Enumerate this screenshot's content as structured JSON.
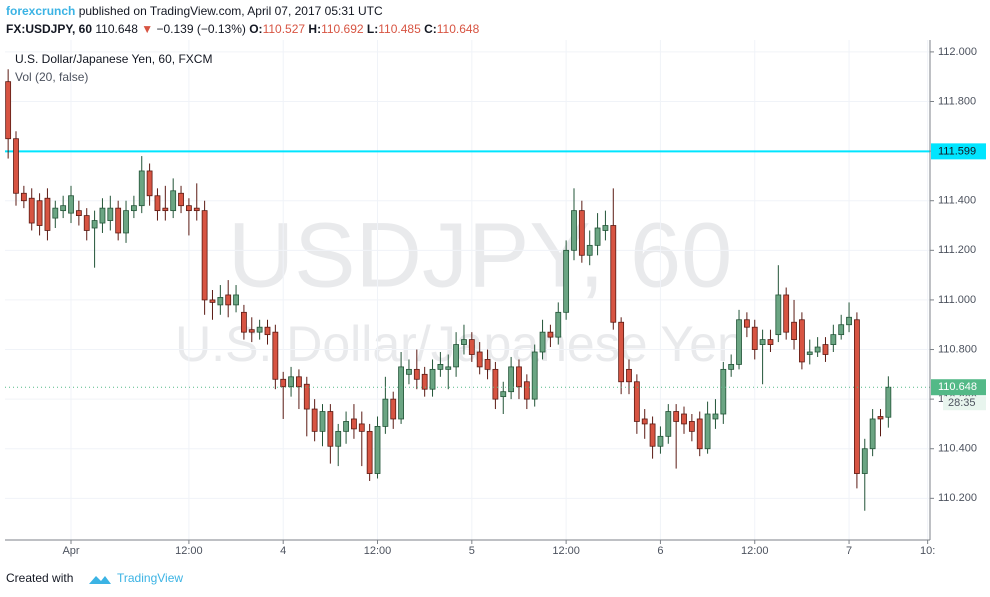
{
  "header": {
    "author": "forexcrunch",
    "published": "published on TradingView.com, April 07, 2017 05:31 UTC",
    "symbol": "FX:USDJPY, 60",
    "price": "110.648",
    "arrow": "▼",
    "change": "−0.139 (−0.13%)",
    "open_label": "O:",
    "open": "110.527",
    "high_label": "H:",
    "high": "110.692",
    "low_label": "L:",
    "low": "110.485",
    "close_label": "C:",
    "close": "110.648"
  },
  "chart_data": {
    "type": "candlestick",
    "title": "U.S. Dollar/Japanese Yen, 60, FXCM",
    "subtitle": "Vol (20, false)",
    "watermark": "USDJPY, 60",
    "watermark_subtitle": "U.S. Dollar/Japanese Yen",
    "up_color": "#6ba583",
    "down_color": "#d75442",
    "up_border": "#225437",
    "down_border": "#5b1a13",
    "grid": true,
    "x": [
      0,
      1,
      2,
      3,
      4,
      5,
      6,
      7,
      8,
      9,
      10,
      11,
      12,
      13,
      14,
      15,
      16,
      17,
      18,
      19,
      20,
      21,
      22,
      23,
      24,
      25,
      26,
      27,
      28,
      29,
      30,
      31,
      32,
      33,
      34,
      35,
      36,
      37,
      38,
      39,
      40,
      41,
      42,
      43,
      44,
      45,
      46,
      47,
      48,
      49,
      50,
      51,
      52,
      53,
      54,
      55,
      56,
      57,
      58,
      59,
      60,
      61,
      62,
      63,
      64,
      65,
      66,
      67,
      68,
      69,
      70,
      71,
      72,
      73,
      74,
      75,
      76,
      77,
      78,
      79,
      80,
      81,
      82,
      83,
      84,
      85,
      86,
      87,
      88,
      89,
      90,
      91,
      92,
      93,
      94,
      95,
      96,
      97,
      98,
      99,
      100,
      101,
      102,
      103,
      104,
      105,
      106,
      107,
      108,
      109,
      110,
      111,
      112
    ],
    "open": [
      111.88,
      111.65,
      111.43,
      111.41,
      111.4,
      111.41,
      111.33,
      111.36,
      111.35,
      111.36,
      111.34,
      111.29,
      111.31,
      111.32,
      111.37,
      111.27,
      111.36,
      111.38,
      111.52,
      111.42,
      111.37,
      111.36,
      111.43,
      111.38,
      111.37,
      111.36,
      111.0,
      110.98,
      111.02,
      110.98,
      110.95,
      110.88,
      110.87,
      110.89,
      110.87,
      110.68,
      110.65,
      110.69,
      110.66,
      110.56,
      110.47,
      110.55,
      110.41,
      110.47,
      110.52,
      110.5,
      110.47,
      110.3,
      110.49,
      110.6,
      110.52,
      110.7,
      110.72,
      110.7,
      110.64,
      110.72,
      110.72,
      110.73,
      110.82,
      110.84,
      110.79,
      110.76,
      110.72,
      110.61,
      110.63,
      110.73,
      110.67,
      110.6,
      110.79,
      110.87,
      110.85,
      110.95,
      111.2,
      111.36,
      111.18,
      111.22,
      111.28,
      111.3,
      110.91,
      110.72,
      110.67,
      110.52,
      110.5,
      110.41,
      110.45,
      110.55,
      110.54,
      110.51,
      110.52,
      110.4,
      110.52,
      110.54,
      110.72,
      110.74,
      110.92,
      110.89,
      110.82,
      110.84,
      110.86,
      111.02,
      110.91,
      110.92,
      110.78,
      110.79,
      110.82,
      110.82,
      110.86,
      110.9,
      110.92,
      110.3,
      110.4,
      110.53,
      110.527
    ],
    "high": [
      111.93,
      111.68,
      111.46,
      111.45,
      111.43,
      111.45,
      111.4,
      111.42,
      111.46,
      111.4,
      111.37,
      111.36,
      111.41,
      111.42,
      111.4,
      111.4,
      111.42,
      111.58,
      111.55,
      111.45,
      111.46,
      111.49,
      111.46,
      111.41,
      111.47,
      111.4,
      111.04,
      111.06,
      111.08,
      111.06,
      110.98,
      110.93,
      110.92,
      110.92,
      110.9,
      110.71,
      110.73,
      110.72,
      110.69,
      110.6,
      110.58,
      110.58,
      110.5,
      110.55,
      110.58,
      110.55,
      110.5,
      110.53,
      110.69,
      110.63,
      110.79,
      110.76,
      110.8,
      110.73,
      110.76,
      110.79,
      110.78,
      110.87,
      110.9,
      110.87,
      110.83,
      110.8,
      110.75,
      110.67,
      110.77,
      110.76,
      110.7,
      110.82,
      110.92,
      110.9,
      110.99,
      111.24,
      111.45,
      111.4,
      111.28,
      111.35,
      111.36,
      111.45,
      110.93,
      110.76,
      110.7,
      110.56,
      110.53,
      110.49,
      110.58,
      110.58,
      110.57,
      110.54,
      110.55,
      110.59,
      110.6,
      110.75,
      110.78,
      110.96,
      110.95,
      110.92,
      110.88,
      110.88,
      111.14,
      111.05,
      111.0,
      110.95,
      110.84,
      110.85,
      110.85,
      110.9,
      110.94,
      110.99,
      110.95,
      110.44,
      110.56,
      110.56,
      110.692
    ],
    "low": [
      111.57,
      111.38,
      111.37,
      111.28,
      111.26,
      111.24,
      111.29,
      111.33,
      111.31,
      111.3,
      111.24,
      111.13,
      111.27,
      111.28,
      111.24,
      111.23,
      111.33,
      111.35,
      111.38,
      111.32,
      111.32,
      111.33,
      111.35,
      111.26,
      111.32,
      110.94,
      110.92,
      110.94,
      110.93,
      110.95,
      110.84,
      110.83,
      110.84,
      110.82,
      110.64,
      110.52,
      110.61,
      110.56,
      110.45,
      110.43,
      110.41,
      110.34,
      110.33,
      110.42,
      110.44,
      110.33,
      110.27,
      110.28,
      110.46,
      110.48,
      110.5,
      110.66,
      110.64,
      110.61,
      110.61,
      110.69,
      110.64,
      110.69,
      110.78,
      110.75,
      110.7,
      110.68,
      110.56,
      110.54,
      110.6,
      110.6,
      110.56,
      110.57,
      110.76,
      110.81,
      110.82,
      110.92,
      111.16,
      111.15,
      111.14,
      111.18,
      111.24,
      110.88,
      110.62,
      110.62,
      110.46,
      110.44,
      110.36,
      110.38,
      110.42,
      110.32,
      110.46,
      110.43,
      110.37,
      110.38,
      110.48,
      110.5,
      110.69,
      110.72,
      110.85,
      110.76,
      110.66,
      110.79,
      110.83,
      110.84,
      110.8,
      110.72,
      110.74,
      110.77,
      110.75,
      110.79,
      110.84,
      110.87,
      110.24,
      110.15,
      110.37,
      110.45,
      110.485
    ],
    "close": [
      111.65,
      111.43,
      111.4,
      111.31,
      111.3,
      111.28,
      111.37,
      111.38,
      111.42,
      111.34,
      111.28,
      111.32,
      111.37,
      111.37,
      111.27,
      111.36,
      111.38,
      111.52,
      111.42,
      111.36,
      111.36,
      111.44,
      111.38,
      111.36,
      111.36,
      111.0,
      110.99,
      111.01,
      110.98,
      111.02,
      110.87,
      110.87,
      110.89,
      110.86,
      110.68,
      110.65,
      110.69,
      110.65,
      110.56,
      110.47,
      110.55,
      110.41,
      110.47,
      110.51,
      110.48,
      110.47,
      110.3,
      110.49,
      110.6,
      110.52,
      110.73,
      110.72,
      110.68,
      110.64,
      110.72,
      110.74,
      110.73,
      110.82,
      110.84,
      110.78,
      110.73,
      110.72,
      110.6,
      110.63,
      110.73,
      110.65,
      110.6,
      110.79,
      110.87,
      110.85,
      110.95,
      111.2,
      111.36,
      111.18,
      111.22,
      111.29,
      111.3,
      110.91,
      110.67,
      110.67,
      110.51,
      110.5,
      110.41,
      110.45,
      110.55,
      110.51,
      110.5,
      110.47,
      110.4,
      110.54,
      110.54,
      110.72,
      110.74,
      110.92,
      110.89,
      110.8,
      110.84,
      110.82,
      111.02,
      110.87,
      110.84,
      110.75,
      110.79,
      110.81,
      110.78,
      110.86,
      110.9,
      110.93,
      110.3,
      110.4,
      110.52,
      110.52,
      110.648
    ],
    "xlim": [
      -0.4,
      117.3
    ],
    "xticks": [
      {
        "value": 8,
        "label": "Apr"
      },
      {
        "value": 23,
        "label": "12:00"
      },
      {
        "value": 35,
        "label": "4"
      },
      {
        "value": 47,
        "label": "12:00"
      },
      {
        "value": 59,
        "label": "5"
      },
      {
        "value": 71,
        "label": "12:00"
      },
      {
        "value": 83,
        "label": "6"
      },
      {
        "value": 95,
        "label": "12:00"
      },
      {
        "value": 107,
        "label": "7"
      },
      {
        "value": 117,
        "label": "10:"
      }
    ],
    "ylim": [
      110.032,
      112.048
    ],
    "yticks": [
      {
        "value": 110.2,
        "label": "110.200"
      },
      {
        "value": 110.4,
        "label": "110.400"
      },
      {
        "value": 110.6,
        "label": "110.600"
      },
      {
        "value": 110.8,
        "label": "110.800"
      },
      {
        "value": 111,
        "label": "111.000"
      },
      {
        "value": 111.2,
        "label": "111.200"
      },
      {
        "value": 111.4,
        "label": "111.400"
      },
      {
        "value": 111.6,
        "label": "111.600"
      },
      {
        "value": 111.8,
        "label": "111.800"
      },
      {
        "value": 112,
        "label": "112.000"
      }
    ],
    "hline": 111.599,
    "hline_color": "#00e5ff",
    "last_price": 110.648,
    "last_price_color": "#53b987",
    "countdown": "28:35"
  },
  "footer": {
    "created": "Created with",
    "brand": "TradingView"
  }
}
